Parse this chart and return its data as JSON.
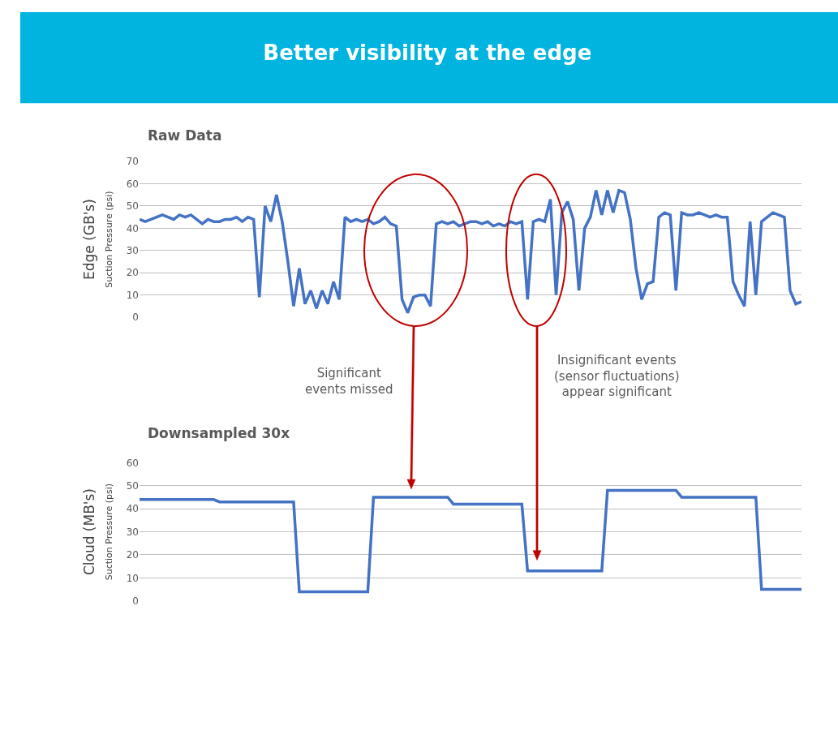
{
  "chart_data": [
    {
      "type": "line",
      "title": "Better visibility at the edge",
      "subtitle": "Raw Data",
      "ylabel": "Edge (GB's)\nSuction Pressure (psi)",
      "annotations": [
        "Significant\nevents missed",
        "Insignificant events\n(sensor fluctuations)\nappear significant"
      ],
      "categories": [
        null,
        null,
        null,
        null,
        null,
        null,
        null,
        null,
        null,
        null,
        null,
        null,
        null,
        null,
        null,
        null,
        null,
        null,
        null,
        null,
        null,
        null,
        null,
        null,
        null,
        null,
        null,
        null,
        null,
        null,
        null,
        null,
        null,
        null,
        null,
        null,
        null,
        null,
        null,
        null,
        null,
        null,
        null,
        null,
        null,
        null,
        null,
        null,
        null,
        null,
        null,
        null,
        null,
        null,
        null,
        null,
        null,
        null,
        null,
        null,
        null,
        null,
        null,
        null,
        null,
        null,
        null,
        null,
        null,
        null,
        null,
        null,
        null,
        null,
        null,
        null,
        null,
        null,
        null,
        null,
        null,
        null,
        null,
        null,
        null,
        null,
        null,
        null,
        null,
        null,
        null,
        null,
        null,
        null,
        null,
        null,
        null,
        null,
        null,
        null,
        null,
        null,
        null,
        null,
        null,
        null,
        null,
        null,
        null,
        null,
        null,
        null,
        null,
        null,
        null,
        null,
        null
      ],
      "series": [
        {
          "color": "#4472c4",
          "values": [
            44,
            43,
            44,
            45,
            46,
            45,
            44,
            46,
            45,
            46,
            44,
            42,
            44,
            43,
            43,
            44,
            44,
            45,
            43,
            45,
            44,
            9,
            50,
            43,
            55,
            43,
            25,
            5,
            22,
            6,
            12,
            4,
            12,
            6,
            16,
            8,
            45,
            43,
            44,
            43,
            44,
            42,
            43,
            45,
            42,
            41,
            8,
            2,
            9,
            10,
            10,
            5,
            42,
            43,
            42,
            43,
            41,
            42,
            43,
            43,
            42,
            43,
            41,
            42,
            41,
            43,
            42,
            43,
            8,
            43,
            44,
            43,
            53,
            10,
            47,
            52,
            44,
            12,
            40,
            45,
            57,
            46,
            57,
            47,
            57,
            56,
            44,
            22,
            8,
            15,
            16,
            45,
            47,
            46,
            12,
            47,
            46,
            46,
            47,
            46,
            45,
            46,
            45,
            45,
            16,
            10,
            5,
            43,
            10,
            43,
            45,
            47,
            46,
            45,
            12,
            6,
            7
          ]
        }
      ],
      "ylim": [
        0,
        70
      ],
      "yticks": [
        0,
        10,
        20,
        30,
        40,
        50,
        60,
        70
      ],
      "grid": "y",
      "tick_labels": "y"
    },
    {
      "type": "line",
      "title": "Downsampled 30x",
      "ylabel": "Cloud (MB's)\nSuction Pressure (psi)",
      "categories": [
        null,
        null,
        null,
        null,
        null,
        null,
        null,
        null,
        null,
        null,
        null,
        null,
        null,
        null,
        null,
        null,
        null,
        null,
        null,
        null,
        null,
        null,
        null,
        null,
        null,
        null,
        null,
        null,
        null,
        null,
        null,
        null,
        null,
        null,
        null,
        null,
        null,
        null,
        null,
        null,
        null,
        null,
        null,
        null,
        null,
        null,
        null,
        null,
        null,
        null,
        null,
        null,
        null,
        null,
        null,
        null,
        null,
        null,
        null,
        null,
        null,
        null,
        null,
        null,
        null,
        null,
        null,
        null,
        null,
        null,
        null,
        null,
        null,
        null,
        null,
        null,
        null,
        null,
        null,
        null,
        null,
        null,
        null,
        null,
        null,
        null,
        null,
        null,
        null,
        null,
        null,
        null,
        null,
        null,
        null,
        null,
        null,
        null,
        null,
        null,
        null,
        null,
        null,
        null,
        null,
        null,
        null,
        null,
        null,
        null,
        null,
        null,
        null,
        null,
        null,
        null,
        null
      ],
      "series": [
        {
          "color": "#4472c4",
          "values": [
            44,
            44,
            44,
            44,
            44,
            44,
            44,
            44,
            44,
            44,
            44,
            44,
            44,
            44,
            43,
            43,
            43,
            43,
            43,
            43,
            43,
            43,
            43,
            43,
            43,
            43,
            43,
            43,
            4,
            4,
            4,
            4,
            4,
            4,
            4,
            4,
            4,
            4,
            4,
            4,
            4,
            45,
            45,
            45,
            45,
            45,
            45,
            45,
            45,
            45,
            45,
            45,
            45,
            45,
            45,
            42,
            42,
            42,
            42,
            42,
            42,
            42,
            42,
            42,
            42,
            42,
            42,
            42,
            13,
            13,
            13,
            13,
            13,
            13,
            13,
            13,
            13,
            13,
            13,
            13,
            13,
            13,
            48,
            48,
            48,
            48,
            48,
            48,
            48,
            48,
            48,
            48,
            48,
            48,
            48,
            45,
            45,
            45,
            45,
            45,
            45,
            45,
            45,
            45,
            45,
            45,
            45,
            45,
            45,
            5,
            5,
            5,
            5,
            5,
            5,
            5,
            5
          ]
        }
      ],
      "ylim": [
        0,
        60
      ],
      "yticks": [
        0,
        10,
        20,
        30,
        40,
        50,
        60
      ],
      "grid": "y",
      "tick_labels": "y"
    }
  ]
}
